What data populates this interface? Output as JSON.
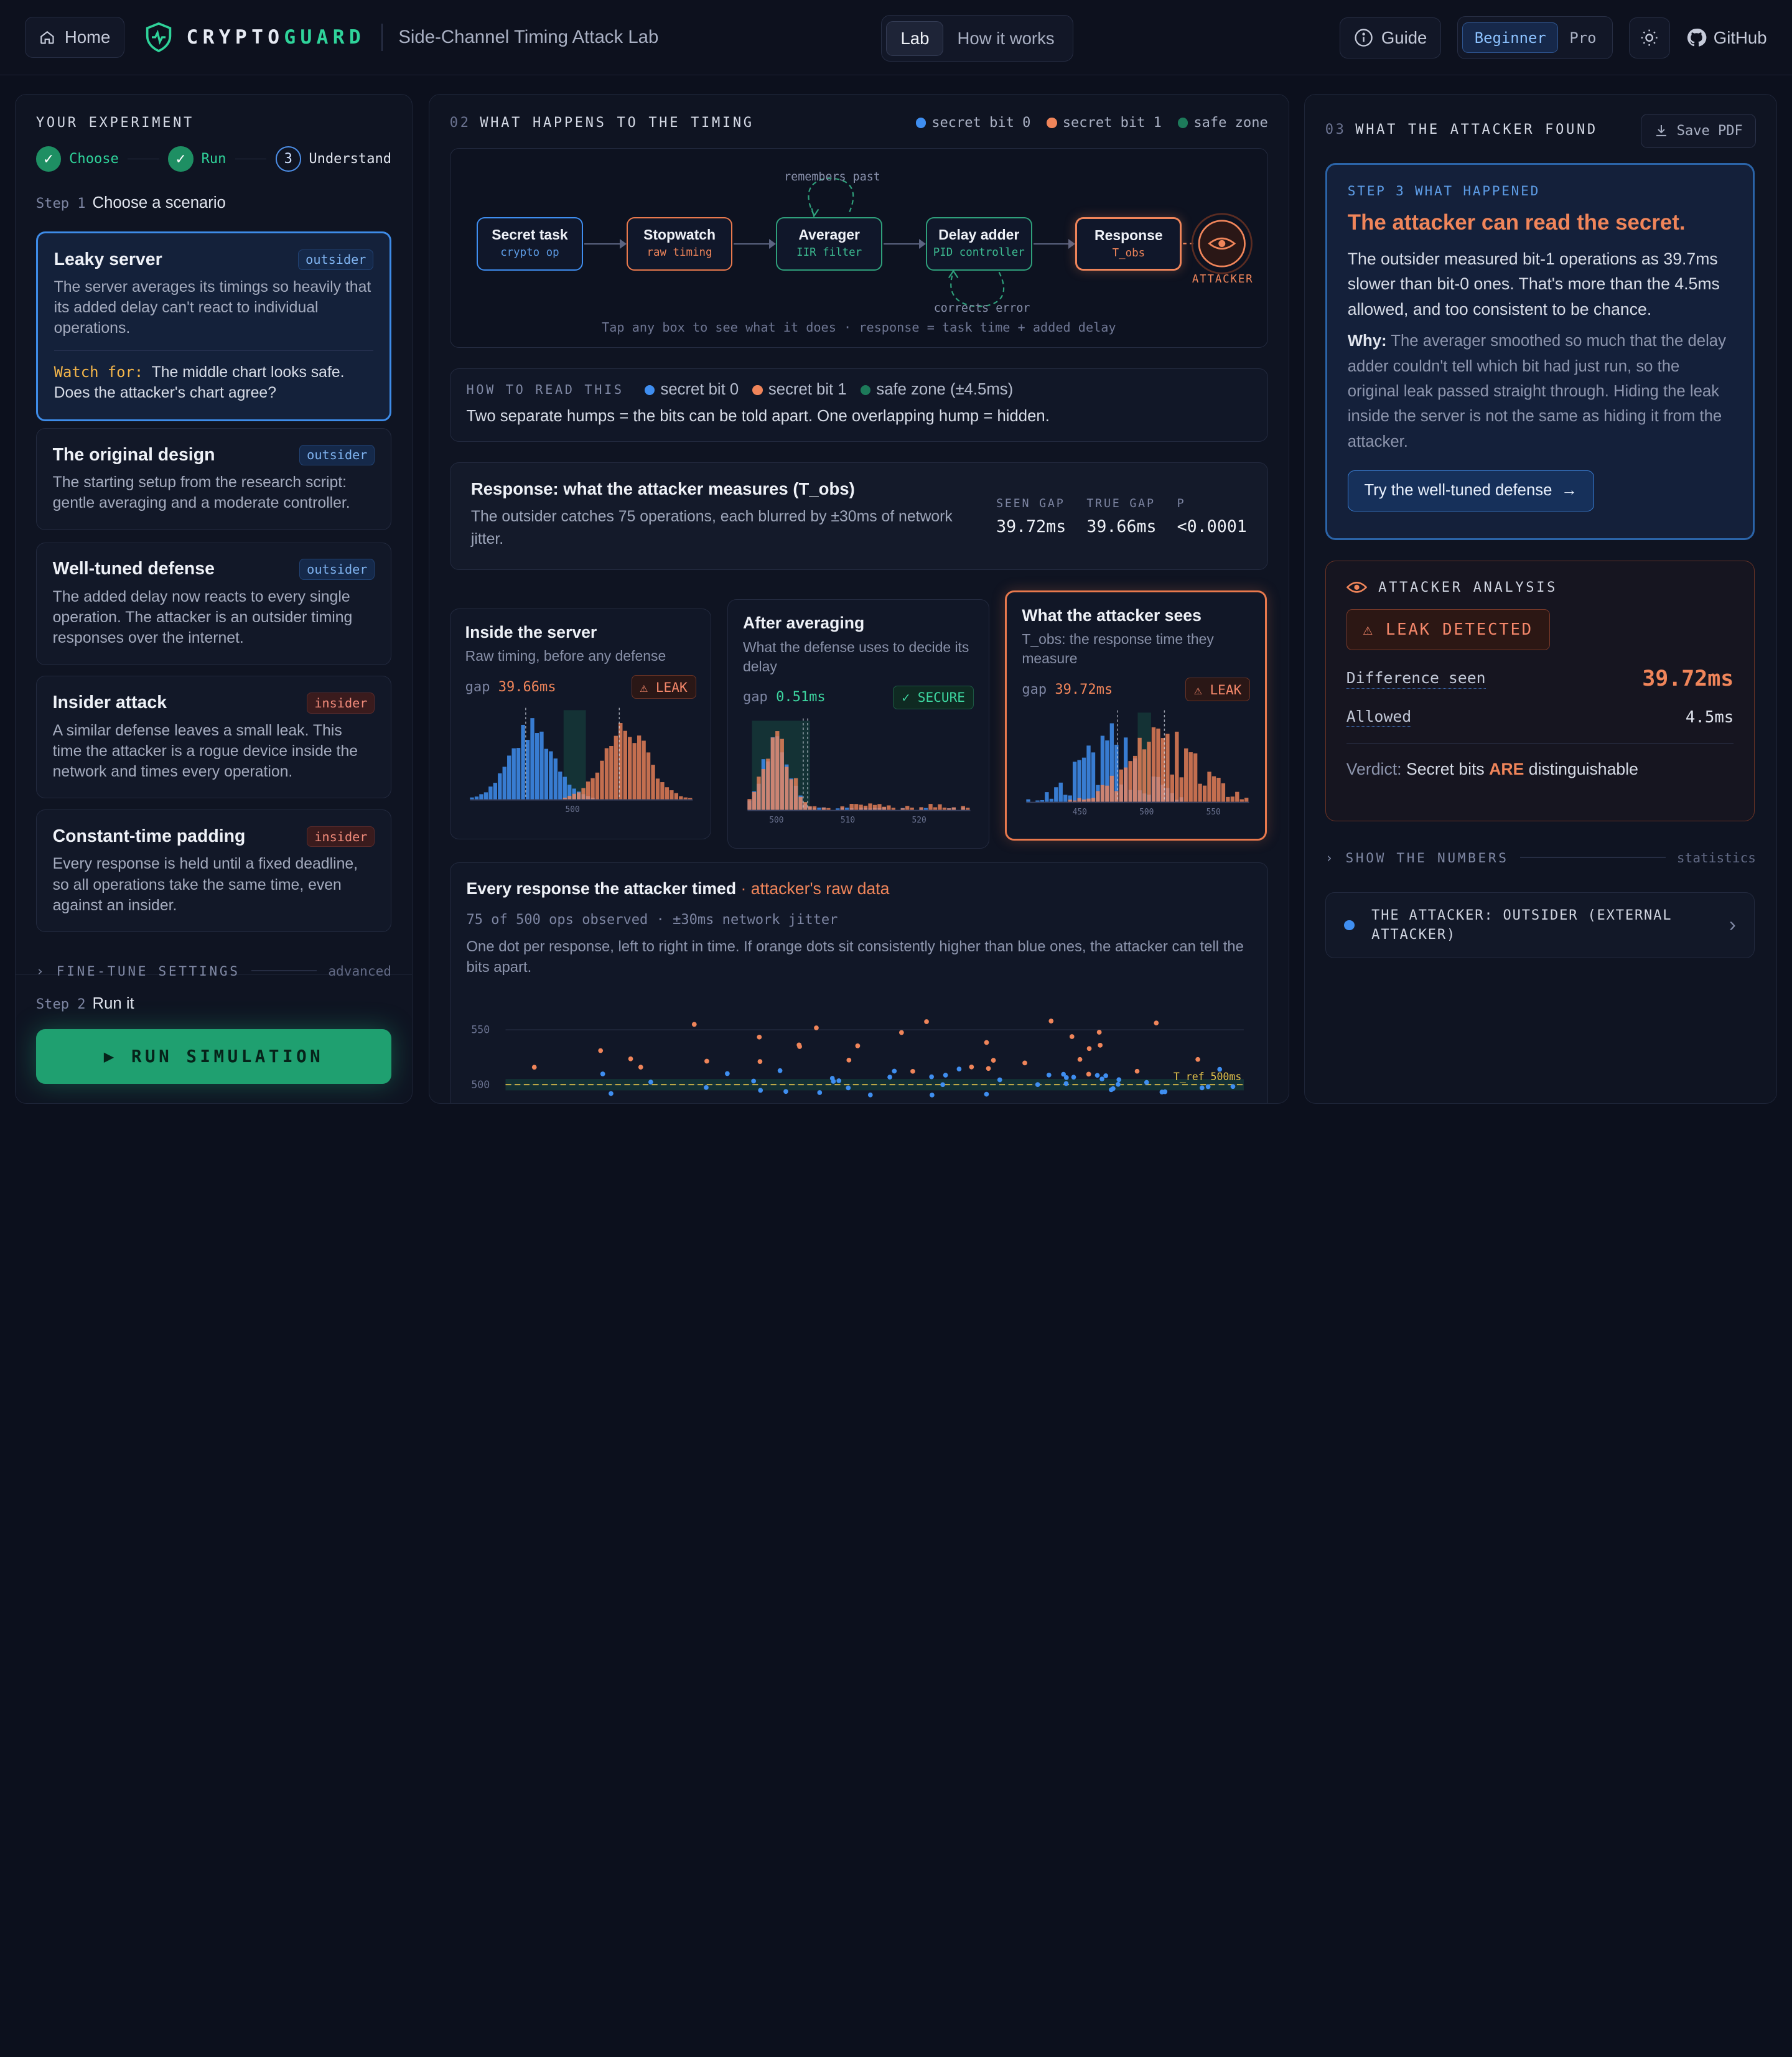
{
  "header": {
    "home_label": "Home",
    "brand_a": "CRYPTO",
    "brand_b": "GUARD",
    "subtitle": "Side-Channel Timing Attack Lab",
    "tabs": [
      {
        "label": "Lab"
      },
      {
        "label": "How it works"
      }
    ],
    "guide_label": "Guide",
    "levels": [
      {
        "label": "Beginner"
      },
      {
        "label": "Pro"
      }
    ],
    "github_label": "GitHub"
  },
  "left": {
    "title": "YOUR EXPERIMENT",
    "steps": [
      {
        "label": "Choose"
      },
      {
        "label": "Run"
      },
      {
        "num": "3",
        "label": "Understand"
      }
    ],
    "step1_num": "Step 1",
    "step1_label": "Choose a scenario",
    "scenarios": [
      {
        "name": "Leaky server",
        "badge": "outsider",
        "desc": "The server averages its timings so heavily that its added delay can't react to individual operations.",
        "watch_label": "Watch for:",
        "watch_text": "The middle chart looks safe. Does the attacker's chart agree?"
      },
      {
        "name": "The original design",
        "badge": "outsider",
        "desc": "The starting setup from the research script: gentle averaging and a moderate controller."
      },
      {
        "name": "Well-tuned defense",
        "badge": "outsider",
        "desc": "The added delay now reacts to every single operation. The attacker is an outsider timing responses over the internet."
      },
      {
        "name": "Insider attack",
        "badge": "insider",
        "desc": "A similar defense leaves a small leak. This time the attacker is a rogue device inside the network and times every operation."
      },
      {
        "name": "Constant-time padding",
        "badge": "insider",
        "desc": "Every response is held until a fixed deadline, so all operations take the same time, even against an insider."
      }
    ],
    "fine_tune": "FINE-TUNE SETTINGS",
    "advanced": "advanced",
    "step2_num": "Step 2",
    "step2_label": "Run it",
    "run_label": "▶ RUN SIMULATION"
  },
  "mid": {
    "num": "02",
    "title": "WHAT HAPPENS TO THE TIMING",
    "legend": [
      "secret bit 0",
      "secret bit 1",
      "safe zone"
    ],
    "nodes": [
      {
        "title": "Secret task",
        "sub": "crypto op"
      },
      {
        "title": "Stopwatch",
        "sub": "raw timing"
      },
      {
        "title": "Averager",
        "sub": "IIR filter"
      },
      {
        "title": "Delay adder",
        "sub": "PID controller"
      },
      {
        "title": "Response",
        "sub": "T_obs"
      }
    ],
    "note_remembers": "remembers past",
    "note_corrects": "corrects error",
    "attacker_label": "ATTACKER",
    "flow_caption": "Tap any box to see what it does · response = task time + added delay",
    "how_key": "HOW TO READ THIS",
    "how_legend": [
      "secret bit 0",
      "secret bit 1",
      "safe zone (±4.5ms)"
    ],
    "how_text": "Two separate humps = the bits can be told apart. One overlapping hump = hidden.",
    "resp_title": "Response: what the attacker measures (T_obs)",
    "resp_desc": "The outsider catches 75 operations, each blurred by ±30ms of network jitter.",
    "stats": [
      {
        "k": "SEEN GAP",
        "v": "39.72ms"
      },
      {
        "k": "TRUE GAP",
        "v": "39.66ms"
      },
      {
        "k": "P",
        "v": "<0.0001"
      }
    ],
    "cards": [
      {
        "title": "Inside the server",
        "desc": "Raw timing, before any defense",
        "gap_label": "gap",
        "gap": "39.66ms",
        "tag": "⚠ LEAK",
        "ticks": [
          "500"
        ]
      },
      {
        "title": "After averaging",
        "desc": "What the defense uses to decide its delay",
        "gap_label": "gap",
        "gap": "0.51ms",
        "tag": "✓ SECURE",
        "ticks": [
          "500",
          "510",
          "520"
        ]
      },
      {
        "title": "What the attacker sees",
        "desc": "T_obs: the response time they measure",
        "gap_label": "gap",
        "gap": "39.72ms",
        "tag": "⚠ LEAK",
        "ticks": [
          "450",
          "500",
          "550"
        ]
      }
    ],
    "raw_title": "Every response the attacker timed",
    "raw_title_suffix": "· attacker's raw data",
    "raw_meta": "75 of 500 ops observed · ±30ms network jitter",
    "raw_desc": "One dot per response, left to right in time. If orange dots sit consistently higher than blue ones, the attacker can tell the bits apart.",
    "raw_axis": [
      "550",
      "500"
    ],
    "tref_label": "T_ref 500ms"
  },
  "right": {
    "num": "03",
    "title": "WHAT THE ATTACKER FOUND",
    "save_label": "Save PDF",
    "step_key": "STEP 3 WHAT HAPPENED",
    "headline": "The attacker can read the secret.",
    "para": "The outsider measured bit-1 operations as 39.7ms slower than bit-0 ones. That's more than the 4.5ms allowed, and too consistent to be chance.",
    "why_label": "Why:",
    "why_text": "The averager smoothed so much that the delay adder couldn't tell which bit had just run, so the original leak passed straight through. Hiding the leak inside the server is not the same as hiding it from the attacker.",
    "try_label": "Try the well-tuned defense",
    "analysis_title": "ATTACKER ANALYSIS",
    "leak_label": "⚠ LEAK DETECTED",
    "diff_label": "Difference seen",
    "diff_value": "39.72ms",
    "allowed_label": "Allowed",
    "allowed_value": "4.5ms",
    "verdict_label": "Verdict:",
    "verdict_a": "Secret bits",
    "verdict_are": "ARE",
    "verdict_b": "distinguishable",
    "show_numbers": "SHOW THE NUMBERS",
    "statistics": "statistics",
    "attacker_text": "THE ATTACKER: OUTSIDER (EXTERNAL ATTACKER)"
  },
  "colors": {
    "bit0": "#3f8ef0",
    "bit1": "#f0855a",
    "safe": "#1d7a5a",
    "accent": "#2fd39a"
  }
}
